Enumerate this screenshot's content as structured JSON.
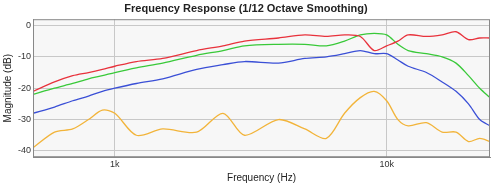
{
  "chart_data": {
    "type": "line",
    "title": "Frequency Response (1/12 Octave Smoothing)",
    "x_label": "Frequency (Hz)",
    "y_label": "Magnitude (dB)",
    "log": "x",
    "grid": true,
    "x": [
      500,
      600,
      700,
      800,
      900,
      1000,
      1200,
      1500,
      2000,
      2500,
      3000,
      4000,
      5000,
      6000,
      7000,
      8000,
      9000,
      10000,
      11000,
      12000,
      14000,
      16000,
      18000,
      20000,
      22000,
      24000
    ],
    "series": [
      {
        "color": "#e8323c",
        "values": [
          -21,
          -18,
          -16,
          -15,
          -14,
          -13,
          -11.5,
          -10.5,
          -8,
          -6.5,
          -5,
          -4,
          -3,
          -3.5,
          -3,
          -3.5,
          -8,
          -6.5,
          -5,
          -3,
          -3.5,
          -3,
          -2,
          -4.5,
          -4,
          -4
        ]
      },
      {
        "color": "#39c939",
        "values": [
          -22,
          -20,
          -18.5,
          -17,
          -16,
          -15,
          -13.5,
          -12,
          -9.5,
          -8,
          -6.5,
          -6,
          -6,
          -6.5,
          -5,
          -3,
          -2.5,
          -3,
          -6,
          -8,
          -9,
          -10,
          -12,
          -16,
          -20,
          -23
        ]
      },
      {
        "color": "#3a4fd6",
        "values": [
          -28,
          -26,
          -24,
          -22.5,
          -21,
          -20,
          -18.5,
          -17,
          -14,
          -12.5,
          -11.5,
          -12,
          -10.5,
          -10,
          -9,
          -8,
          -9,
          -9,
          -11,
          -13,
          -15,
          -18,
          -21,
          -25,
          -30,
          -32
        ]
      },
      {
        "color": "#f2b43a",
        "values": [
          -39,
          -34,
          -33,
          -30,
          -27,
          -28,
          -35,
          -33,
          -34,
          -28,
          -35,
          -30,
          -33,
          -36,
          -28,
          -23,
          -21,
          -24,
          -30,
          -32,
          -31,
          -34,
          -34,
          -37,
          -36,
          -37
        ]
      }
    ],
    "xlim": [
      500,
      24000
    ],
    "xticks": [
      {
        "value": 1000,
        "label": "1k"
      },
      {
        "value": 10000,
        "label": "10k"
      }
    ],
    "ylim": [
      -42,
      2
    ],
    "yticks": [
      -40,
      -30,
      -20,
      -10,
      0
    ]
  }
}
